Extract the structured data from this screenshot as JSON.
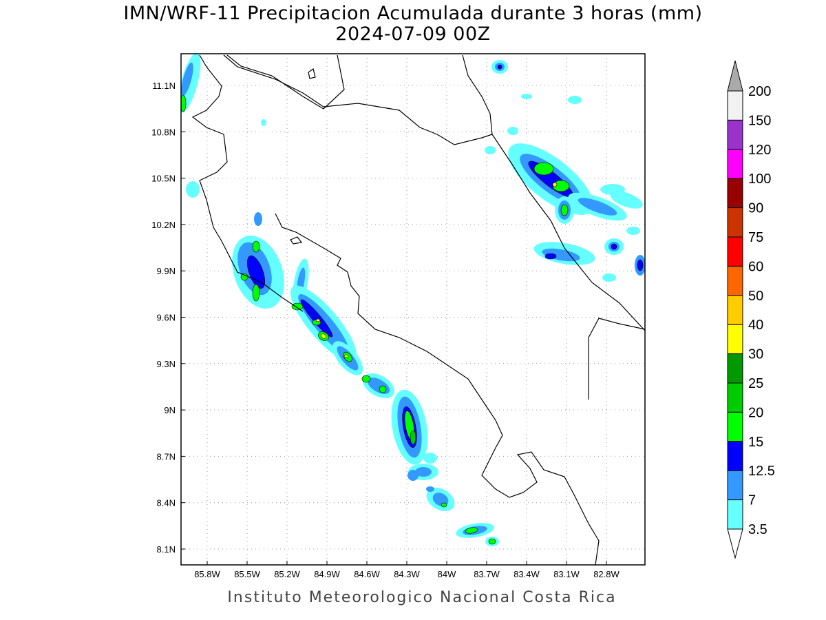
{
  "title": "IMN/WRF-11 Precipitacion Acumulada durante 3 horas (mm)",
  "subtitle": "2024-07-09 00Z",
  "credit": "Instituto Meteorologico Nacional Costa Rica",
  "map": {
    "lon_ticks": [
      "85.8W",
      "85.5W",
      "85.2W",
      "84.9W",
      "84.6W",
      "84.3W",
      "84W",
      "83.7W",
      "83.4W",
      "83.1W",
      "82.8W"
    ],
    "lat_ticks": [
      "11.1N",
      "10.8N",
      "10.5N",
      "10.2N",
      "9.9N",
      "9.6N",
      "9.3N",
      "9N",
      "8.7N",
      "8.4N",
      "8.1N"
    ]
  },
  "colorbar": {
    "labels": [
      "200",
      "150",
      "120",
      "100",
      "90",
      "75",
      "60",
      "50",
      "40",
      "30",
      "25",
      "20",
      "15",
      "12.5",
      "7",
      "3.5"
    ],
    "colors": [
      "#f2f2f2",
      "#9933cc",
      "#ff00ff",
      "#990000",
      "#cc3300",
      "#ff0000",
      "#ff6600",
      "#ffcc00",
      "#ffff00",
      "#009900",
      "#00cc00",
      "#00ff00",
      "#0000ff",
      "#3399ff",
      "#66ffff"
    ],
    "over_color": "#aaaaaa",
    "under_color": "#ffffff"
  }
}
